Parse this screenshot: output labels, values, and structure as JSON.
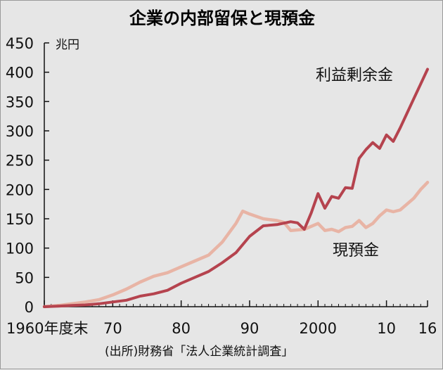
{
  "chart_data": {
    "type": "line",
    "title": "企業の内部留保と現預金",
    "unit": "兆円",
    "source": "(出所)財務省「法人企業統計調査」",
    "x_tick_labels": [
      "1960年度末",
      "70",
      "80",
      "90",
      "2000",
      "10",
      "16"
    ],
    "x_ticks": [
      1960,
      1970,
      1980,
      1990,
      2000,
      2010,
      2016
    ],
    "xlim": [
      1960,
      2016
    ],
    "y_ticks": [
      0,
      50,
      100,
      150,
      200,
      250,
      300,
      350,
      400,
      450
    ],
    "ylim": [
      0,
      450
    ],
    "grid": false,
    "series": [
      {
        "name": "利益剰余金",
        "color": "#b5434e",
        "x": [
          1960,
          1962,
          1964,
          1966,
          1968,
          1970,
          1972,
          1974,
          1976,
          1978,
          1980,
          1982,
          1984,
          1986,
          1988,
          1990,
          1992,
          1994,
          1996,
          1997,
          1998,
          1999,
          2000,
          2001,
          2002,
          2003,
          2004,
          2005,
          2006,
          2007,
          2008,
          2009,
          2010,
          2011,
          2012,
          2013,
          2014,
          2015,
          2016
        ],
        "values": [
          0,
          1,
          2,
          3,
          5,
          8,
          11,
          18,
          22,
          28,
          40,
          50,
          60,
          75,
          92,
          120,
          138,
          140,
          145,
          143,
          132,
          160,
          193,
          168,
          188,
          185,
          203,
          202,
          253,
          268,
          280,
          270,
          293,
          282,
          305,
          330,
          355,
          380,
          405
        ]
      },
      {
        "name": "現預金",
        "color": "#e8b4a5",
        "x": [
          1960,
          1962,
          1964,
          1966,
          1968,
          1970,
          1972,
          1974,
          1976,
          1978,
          1980,
          1982,
          1984,
          1986,
          1988,
          1989,
          1990,
          1992,
          1994,
          1995,
          1996,
          1998,
          2000,
          2001,
          2002,
          2003,
          2004,
          2005,
          2006,
          2007,
          2008,
          2009,
          2010,
          2011,
          2012,
          2013,
          2014,
          2015,
          2016
        ],
        "values": [
          0,
          2,
          5,
          8,
          12,
          20,
          30,
          42,
          52,
          58,
          68,
          78,
          88,
          110,
          142,
          163,
          158,
          150,
          147,
          144,
          130,
          132,
          142,
          130,
          132,
          128,
          135,
          137,
          147,
          135,
          142,
          155,
          165,
          162,
          165,
          175,
          185,
          200,
          212
        ]
      }
    ]
  }
}
